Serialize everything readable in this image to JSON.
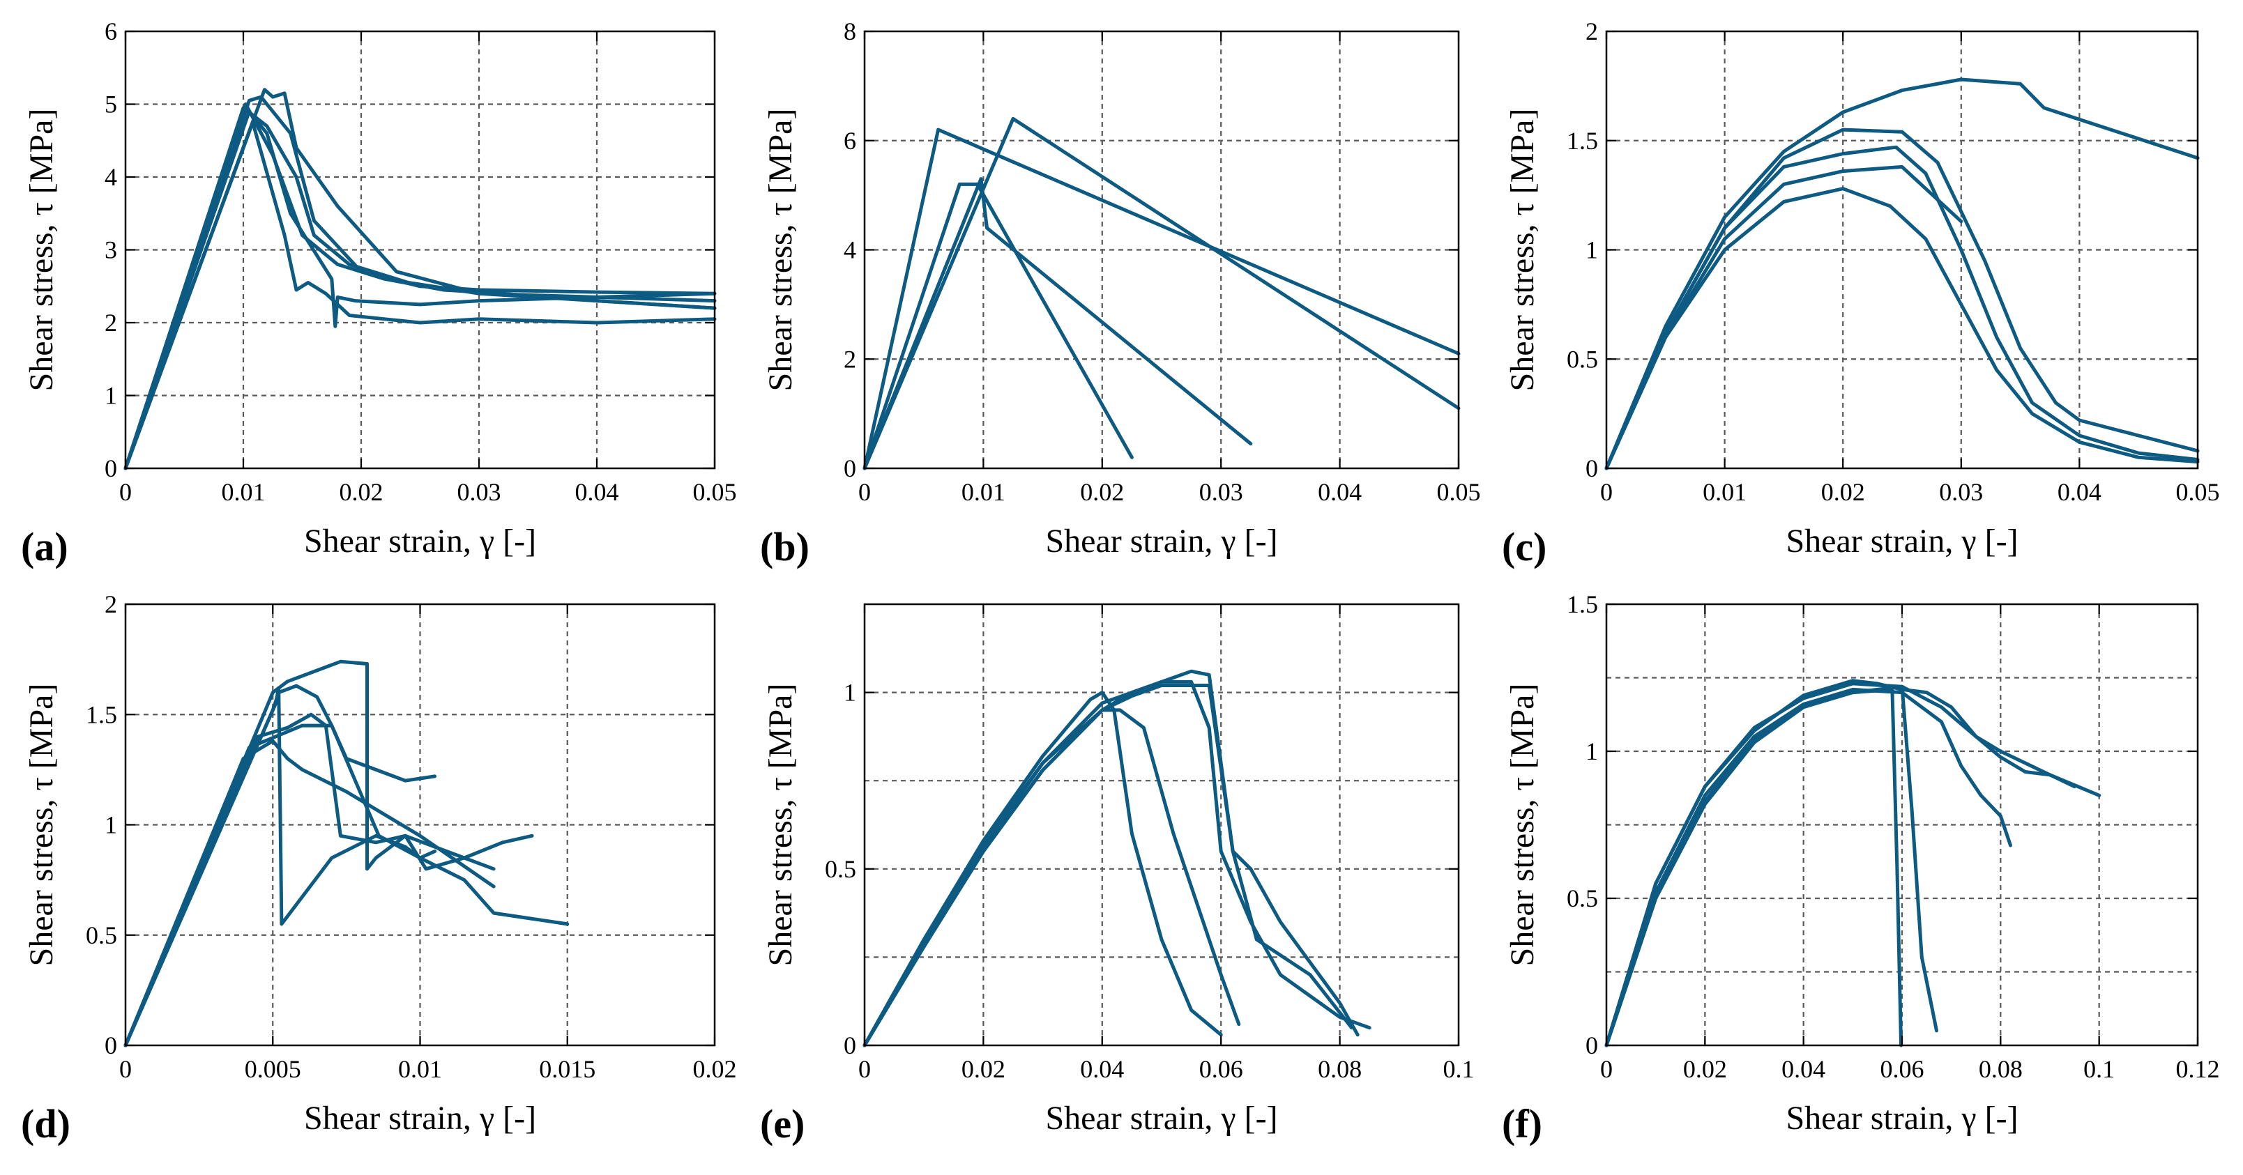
{
  "colors": {
    "series": "#0d5a82",
    "grid": "#5a5a5a",
    "axis": "#000000"
  },
  "chart_data": [
    {
      "panel": "(a)",
      "type": "line",
      "xlabel": "Shear strain, γ [-]",
      "ylabel": "Shear stress, τ [MPa]",
      "xlim": [
        0,
        0.05
      ],
      "ylim": [
        0,
        6
      ],
      "xticks": [
        "0",
        "0.01",
        "0.02",
        "0.03",
        "0.04",
        "0.05"
      ],
      "yticks": [
        "0",
        "1",
        "2",
        "3",
        "4",
        "5",
        "6"
      ],
      "grid": true,
      "series": [
        {
          "x": [
            0,
            0.0105,
            0.0115,
            0.014,
            0.016,
            0.02,
            0.025,
            0.03,
            0.04,
            0.05
          ],
          "y": [
            0,
            5.05,
            5.1,
            4.6,
            3.4,
            2.7,
            2.5,
            2.45,
            2.42,
            2.4
          ]
        },
        {
          "x": [
            0,
            0.0118,
            0.0125,
            0.0135,
            0.0145,
            0.018,
            0.023,
            0.03,
            0.04,
            0.05
          ],
          "y": [
            0,
            5.2,
            5.1,
            5.15,
            4.4,
            3.6,
            2.7,
            2.4,
            2.35,
            2.3
          ]
        },
        {
          "x": [
            0,
            0.01,
            0.012,
            0.0145,
            0.016,
            0.019,
            0.024,
            0.03,
            0.04,
            0.05
          ],
          "y": [
            0,
            4.95,
            4.7,
            4.0,
            3.2,
            2.8,
            2.55,
            2.4,
            2.3,
            2.2
          ]
        },
        {
          "x": [
            0,
            0.0105,
            0.012,
            0.014,
            0.0175,
            0.0178,
            0.018,
            0.0195,
            0.025,
            0.03,
            0.04,
            0.05
          ],
          "y": [
            0,
            4.9,
            4.6,
            3.5,
            2.6,
            1.95,
            2.35,
            2.3,
            2.25,
            2.3,
            2.35,
            2.4
          ]
        },
        {
          "x": [
            0,
            0.0108,
            0.0135,
            0.0145,
            0.0155,
            0.017,
            0.019,
            0.022,
            0.025,
            0.03,
            0.04,
            0.05
          ],
          "y": [
            0,
            4.75,
            3.2,
            2.45,
            2.55,
            2.4,
            2.1,
            2.05,
            2.0,
            2.05,
            2.0,
            2.05
          ]
        },
        {
          "x": [
            0,
            0.0102,
            0.0125,
            0.015,
            0.018,
            0.022,
            0.027,
            0.032,
            0.04,
            0.05
          ],
          "y": [
            0,
            5.0,
            4.3,
            3.2,
            2.8,
            2.6,
            2.45,
            2.4,
            2.3,
            2.2
          ]
        }
      ]
    },
    {
      "panel": "(b)",
      "type": "line",
      "xlabel": "Shear strain, γ [-]",
      "ylabel": "Shear stress, τ [MPa]",
      "xlim": [
        0,
        0.05
      ],
      "ylim": [
        0,
        8
      ],
      "xticks": [
        "0",
        "0.01",
        "0.02",
        "0.03",
        "0.04",
        "0.05"
      ],
      "yticks": [
        "0",
        "2",
        "4",
        "6",
        "8"
      ],
      "grid": true,
      "series": [
        {
          "x": [
            0,
            0.0062,
            0.05
          ],
          "y": [
            0,
            6.2,
            2.1
          ]
        },
        {
          "x": [
            0,
            0.0125,
            0.05
          ],
          "y": [
            0,
            6.4,
            1.1
          ]
        },
        {
          "x": [
            0,
            0.008,
            0.0095,
            0.0225
          ],
          "y": [
            0,
            5.2,
            5.2,
            0.2
          ]
        },
        {
          "x": [
            0,
            0.0098,
            0.0103,
            0.0325
          ],
          "y": [
            0,
            5.3,
            4.4,
            0.45
          ]
        }
      ]
    },
    {
      "panel": "(c)",
      "type": "line",
      "xlabel": "Shear strain, γ [-]",
      "ylabel": "Shear stress, τ [MPa]",
      "xlim": [
        0,
        0.05
      ],
      "ylim": [
        0,
        2
      ],
      "xticks": [
        "0",
        "0.01",
        "0.02",
        "0.03",
        "0.04",
        "0.05"
      ],
      "yticks": [
        "0",
        "0.5",
        "1",
        "1.5",
        "2"
      ],
      "grid": true,
      "series": [
        {
          "x": [
            0,
            0.005,
            0.01,
            0.015,
            0.02,
            0.025,
            0.03,
            0.035,
            0.037,
            0.05
          ],
          "y": [
            0,
            0.65,
            1.15,
            1.45,
            1.63,
            1.73,
            1.78,
            1.76,
            1.65,
            1.42
          ]
        },
        {
          "x": [
            0,
            0.005,
            0.01,
            0.015,
            0.02,
            0.025,
            0.028,
            0.032,
            0.035,
            0.038,
            0.04,
            0.045,
            0.05
          ],
          "y": [
            0,
            0.62,
            1.1,
            1.42,
            1.55,
            1.54,
            1.4,
            0.95,
            0.55,
            0.3,
            0.22,
            0.15,
            0.08
          ]
        },
        {
          "x": [
            0,
            0.005,
            0.01,
            0.015,
            0.02,
            0.0245,
            0.027,
            0.03,
            0.033,
            0.036,
            0.04,
            0.045,
            0.05
          ],
          "y": [
            0,
            0.62,
            1.1,
            1.38,
            1.44,
            1.47,
            1.35,
            1.0,
            0.6,
            0.3,
            0.15,
            0.07,
            0.04
          ]
        },
        {
          "x": [
            0,
            0.005,
            0.01,
            0.015,
            0.02,
            0.025,
            0.03
          ],
          "y": [
            0,
            0.6,
            1.05,
            1.3,
            1.36,
            1.38,
            1.13
          ]
        },
        {
          "x": [
            0,
            0.005,
            0.01,
            0.015,
            0.02,
            0.024,
            0.027,
            0.03,
            0.033,
            0.036,
            0.04,
            0.045,
            0.05
          ],
          "y": [
            0,
            0.6,
            1.0,
            1.22,
            1.28,
            1.2,
            1.05,
            0.75,
            0.45,
            0.25,
            0.12,
            0.05,
            0.03
          ]
        }
      ]
    },
    {
      "panel": "(d)",
      "type": "line",
      "xlabel": "Shear strain, γ [-]",
      "ylabel": "Shear stress, τ [MPa]",
      "xlim": [
        0,
        0.02
      ],
      "ylim": [
        0,
        2
      ],
      "xticks": [
        "0",
        "0.005",
        "0.01",
        "0.015",
        "0.02"
      ],
      "yticks": [
        "0",
        "0.5",
        "1",
        "1.5",
        "2"
      ],
      "grid": true,
      "series": [
        {
          "x": [
            0,
            0.005,
            0.0055,
            0.0065,
            0.0073,
            0.0082,
            0.0082,
            0.0085,
            0.0095,
            0.0105,
            0.0115,
            0.0125
          ],
          "y": [
            0,
            1.6,
            1.65,
            1.7,
            1.74,
            1.73,
            0.8,
            0.85,
            0.95,
            0.9,
            0.85,
            0.8
          ]
        },
        {
          "x": [
            0,
            0.0051,
            0.0052,
            0.0053,
            0.007,
            0.0085,
            0.0095,
            0.01,
            0.0105
          ],
          "y": [
            0,
            1.55,
            1.62,
            0.55,
            0.85,
            0.95,
            0.9,
            0.85,
            0.88
          ]
        },
        {
          "x": [
            0,
            0.005,
            0.0052,
            0.0058,
            0.0065,
            0.007,
            0.0075,
            0.0085,
            0.0095,
            0.0105
          ],
          "y": [
            0,
            1.52,
            1.6,
            1.63,
            1.58,
            1.45,
            1.3,
            1.25,
            1.2,
            1.22
          ]
        },
        {
          "x": [
            0,
            0.0045,
            0.0055,
            0.0063,
            0.0068,
            0.0073,
            0.0085,
            0.0095,
            0.0102,
            0.0115,
            0.0128,
            0.0138
          ],
          "y": [
            0,
            1.4,
            1.44,
            1.5,
            1.45,
            0.95,
            0.92,
            0.95,
            0.8,
            0.85,
            0.92,
            0.95
          ]
        },
        {
          "x": [
            0,
            0.0042,
            0.006,
            0.007,
            0.0078,
            0.0086,
            0.01,
            0.0115,
            0.0125,
            0.015
          ],
          "y": [
            0,
            1.35,
            1.45,
            1.45,
            1.2,
            0.95,
            0.85,
            0.75,
            0.6,
            0.55
          ]
        },
        {
          "x": [
            0,
            0.004,
            0.005,
            0.0055,
            0.006,
            0.0075,
            0.01,
            0.0125
          ],
          "y": [
            0,
            1.3,
            1.38,
            1.3,
            1.25,
            1.15,
            0.95,
            0.72
          ]
        }
      ]
    },
    {
      "panel": "(e)",
      "type": "line",
      "xlabel": "Shear strain, γ [-]",
      "ylabel": "Shear stress, τ [MPa]",
      "xlim": [
        0,
        0.1
      ],
      "ylim": [
        0,
        1.25
      ],
      "xticks": [
        "0",
        "0.02",
        "0.04",
        "0.06",
        "0.08",
        "0.1"
      ],
      "yticks": [
        "0",
        "0.5",
        "1"
      ],
      "grid": true,
      "series": [
        {
          "x": [
            0,
            0.01,
            0.02,
            0.03,
            0.038,
            0.04,
            0.042,
            0.045,
            0.05,
            0.055,
            0.06
          ],
          "y": [
            0,
            0.3,
            0.58,
            0.82,
            0.98,
            1.0,
            0.95,
            0.6,
            0.3,
            0.1,
            0.03
          ]
        },
        {
          "x": [
            0,
            0.01,
            0.02,
            0.03,
            0.04,
            0.05,
            0.055,
            0.058,
            0.06,
            0.062,
            0.065,
            0.07,
            0.08,
            0.083
          ],
          "y": [
            0,
            0.29,
            0.56,
            0.8,
            0.97,
            1.03,
            1.06,
            1.05,
            0.8,
            0.55,
            0.5,
            0.35,
            0.12,
            0.03
          ]
        },
        {
          "x": [
            0,
            0.01,
            0.02,
            0.03,
            0.04,
            0.045,
            0.05,
            0.055,
            0.058,
            0.06,
            0.065,
            0.07,
            0.08,
            0.085
          ],
          "y": [
            0,
            0.28,
            0.55,
            0.78,
            0.95,
            1.0,
            1.03,
            1.03,
            0.9,
            0.55,
            0.35,
            0.2,
            0.08,
            0.05
          ]
        },
        {
          "x": [
            0,
            0.01,
            0.02,
            0.03,
            0.04,
            0.045,
            0.05,
            0.058,
            0.062,
            0.066,
            0.075,
            0.082
          ],
          "y": [
            0,
            0.28,
            0.55,
            0.78,
            0.95,
            0.99,
            1.02,
            1.02,
            0.55,
            0.3,
            0.2,
            0.05
          ]
        },
        {
          "x": [
            0,
            0.01,
            0.02,
            0.03,
            0.04,
            0.043,
            0.047,
            0.052,
            0.06,
            0.063
          ],
          "y": [
            0,
            0.3,
            0.57,
            0.8,
            0.95,
            0.95,
            0.9,
            0.6,
            0.2,
            0.06
          ]
        }
      ]
    },
    {
      "panel": "(f)",
      "type": "line",
      "xlabel": "Shear strain, γ [-]",
      "ylabel": "Shear stress, τ [MPa]",
      "xlim": [
        0,
        0.12
      ],
      "ylim": [
        0,
        1.5
      ],
      "xticks": [
        "0",
        "0.02",
        "0.04",
        "0.06",
        "0.08",
        "0.1",
        "0.12"
      ],
      "yticks": [
        "0",
        "0.5",
        "1",
        "1.5"
      ],
      "grid": true,
      "series": [
        {
          "x": [
            0,
            0.01,
            0.02,
            0.03,
            0.04,
            0.05,
            0.055,
            0.06,
            0.065,
            0.07,
            0.075,
            0.08,
            0.09,
            0.1
          ],
          "y": [
            0,
            0.55,
            0.88,
            1.07,
            1.19,
            1.24,
            1.23,
            1.21,
            1.2,
            1.15,
            1.05,
            1.0,
            0.92,
            0.85
          ]
        },
        {
          "x": [
            0,
            0.01,
            0.02,
            0.03,
            0.04,
            0.05,
            0.058,
            0.059,
            0.0598
          ],
          "y": [
            0,
            0.52,
            0.85,
            1.05,
            1.16,
            1.2,
            1.21,
            0.6,
            0.0
          ]
        },
        {
          "x": [
            0,
            0.01,
            0.02,
            0.03,
            0.04,
            0.05,
            0.06,
            0.062,
            0.064,
            0.067
          ],
          "y": [
            0,
            0.5,
            0.82,
            1.03,
            1.15,
            1.2,
            1.22,
            0.8,
            0.3,
            0.05
          ]
        },
        {
          "x": [
            0,
            0.01,
            0.02,
            0.03,
            0.04,
            0.05,
            0.06,
            0.068,
            0.072,
            0.076,
            0.08,
            0.082
          ],
          "y": [
            0,
            0.5,
            0.83,
            1.04,
            1.16,
            1.21,
            1.2,
            1.1,
            0.95,
            0.85,
            0.78,
            0.68
          ]
        },
        {
          "x": [
            0,
            0.01,
            0.02,
            0.03,
            0.04,
            0.05,
            0.06,
            0.068,
            0.075,
            0.08,
            0.085,
            0.09,
            0.095
          ],
          "y": [
            0,
            0.55,
            0.88,
            1.08,
            1.18,
            1.23,
            1.22,
            1.15,
            1.05,
            0.98,
            0.93,
            0.92,
            0.88
          ]
        }
      ]
    }
  ]
}
